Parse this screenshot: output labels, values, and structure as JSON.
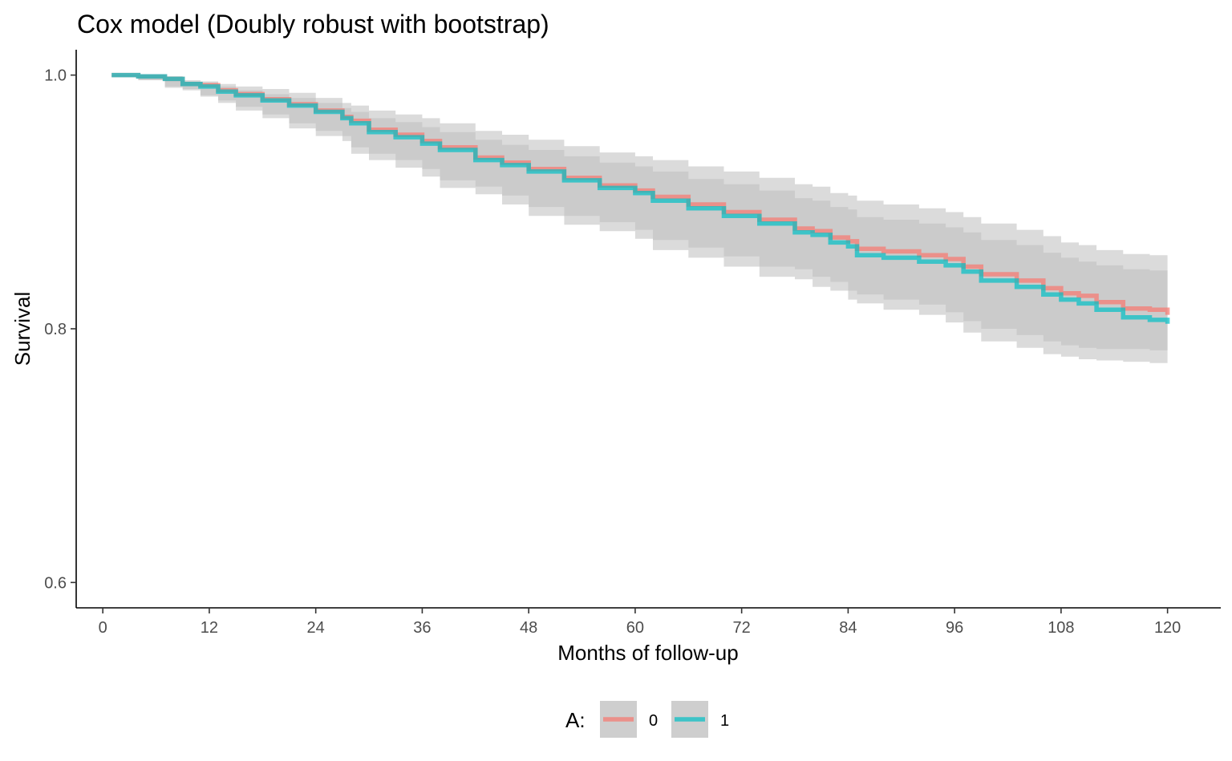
{
  "chart_data": {
    "type": "line",
    "title": "Cox model (Doubly robust with bootstrap)",
    "xlabel": "Months of follow-up",
    "ylabel": "Survival",
    "xlim": [
      -3,
      126
    ],
    "ylim": [
      0.58,
      1.02
    ],
    "x_ticks": [
      0,
      12,
      24,
      36,
      48,
      60,
      72,
      84,
      96,
      108,
      120
    ],
    "y_ticks": [
      0.6,
      0.8,
      1.0
    ],
    "y_tick_labels": [
      "0.6",
      "0.8",
      "1.0"
    ],
    "grid": false,
    "legend": {
      "title": "A:",
      "position": "bottom"
    },
    "x": [
      1,
      4,
      7,
      9,
      11,
      13,
      15,
      18,
      21,
      24,
      27,
      28,
      30,
      33,
      36,
      38,
      42,
      45,
      48,
      52,
      56,
      60,
      62,
      66,
      70,
      74,
      78,
      80,
      82,
      84,
      85,
      88,
      92,
      95,
      97,
      99,
      103,
      106,
      108,
      110,
      112,
      115,
      118,
      120
    ],
    "series": [
      {
        "name": "0",
        "color": "#F8766D",
        "values": [
          1.0,
          0.999,
          0.997,
          0.993,
          0.992,
          0.988,
          0.985,
          0.981,
          0.977,
          0.972,
          0.967,
          0.964,
          0.957,
          0.953,
          0.948,
          0.943,
          0.935,
          0.931,
          0.926,
          0.919,
          0.913,
          0.909,
          0.904,
          0.898,
          0.892,
          0.886,
          0.879,
          0.877,
          0.872,
          0.869,
          0.863,
          0.861,
          0.858,
          0.855,
          0.849,
          0.843,
          0.838,
          0.832,
          0.828,
          0.826,
          0.821,
          0.816,
          0.815,
          0.811
        ],
        "lower_95": [
          1.0,
          0.999,
          0.996,
          0.99,
          0.988,
          0.983,
          0.978,
          0.972,
          0.966,
          0.958,
          0.952,
          0.948,
          0.938,
          0.933,
          0.927,
          0.92,
          0.911,
          0.906,
          0.898,
          0.889,
          0.882,
          0.877,
          0.871,
          0.862,
          0.856,
          0.849,
          0.841,
          0.839,
          0.833,
          0.83,
          0.823,
          0.82,
          0.815,
          0.811,
          0.805,
          0.797,
          0.79,
          0.785,
          0.78,
          0.778,
          0.776,
          0.775,
          0.774,
          0.773
        ],
        "upper_95": [
          1.0,
          1.0,
          0.999,
          0.996,
          0.995,
          0.993,
          0.991,
          0.989,
          0.986,
          0.982,
          0.978,
          0.976,
          0.972,
          0.969,
          0.966,
          0.962,
          0.956,
          0.953,
          0.949,
          0.944,
          0.939,
          0.936,
          0.933,
          0.928,
          0.924,
          0.919,
          0.914,
          0.912,
          0.907,
          0.905,
          0.901,
          0.898,
          0.895,
          0.892,
          0.888,
          0.883,
          0.878,
          0.873,
          0.868,
          0.866,
          0.862,
          0.859,
          0.858,
          0.857
        ]
      },
      {
        "name": "1",
        "color": "#00BFC4",
        "values": [
          1.0,
          0.999,
          0.997,
          0.993,
          0.991,
          0.987,
          0.984,
          0.98,
          0.976,
          0.971,
          0.966,
          0.962,
          0.955,
          0.951,
          0.946,
          0.941,
          0.933,
          0.929,
          0.924,
          0.917,
          0.911,
          0.907,
          0.901,
          0.895,
          0.889,
          0.883,
          0.876,
          0.874,
          0.868,
          0.865,
          0.858,
          0.856,
          0.853,
          0.85,
          0.845,
          0.838,
          0.833,
          0.827,
          0.823,
          0.82,
          0.815,
          0.809,
          0.807,
          0.804
        ],
        "lower_95": [
          1.0,
          0.999,
          0.996,
          0.991,
          0.989,
          0.984,
          0.98,
          0.975,
          0.969,
          0.962,
          0.956,
          0.952,
          0.943,
          0.938,
          0.933,
          0.926,
          0.917,
          0.912,
          0.905,
          0.896,
          0.889,
          0.884,
          0.878,
          0.87,
          0.864,
          0.857,
          0.849,
          0.847,
          0.841,
          0.837,
          0.83,
          0.827,
          0.823,
          0.819,
          0.813,
          0.806,
          0.8,
          0.795,
          0.79,
          0.787,
          0.785,
          0.784,
          0.784,
          0.783
        ],
        "upper_95": [
          1.0,
          1.0,
          0.999,
          0.995,
          0.994,
          0.991,
          0.988,
          0.985,
          0.982,
          0.978,
          0.974,
          0.971,
          0.966,
          0.963,
          0.959,
          0.955,
          0.949,
          0.945,
          0.941,
          0.936,
          0.931,
          0.928,
          0.924,
          0.918,
          0.914,
          0.909,
          0.903,
          0.901,
          0.896,
          0.894,
          0.888,
          0.886,
          0.883,
          0.88,
          0.876,
          0.87,
          0.866,
          0.86,
          0.856,
          0.853,
          0.85,
          0.847,
          0.846,
          0.845
        ]
      }
    ]
  }
}
